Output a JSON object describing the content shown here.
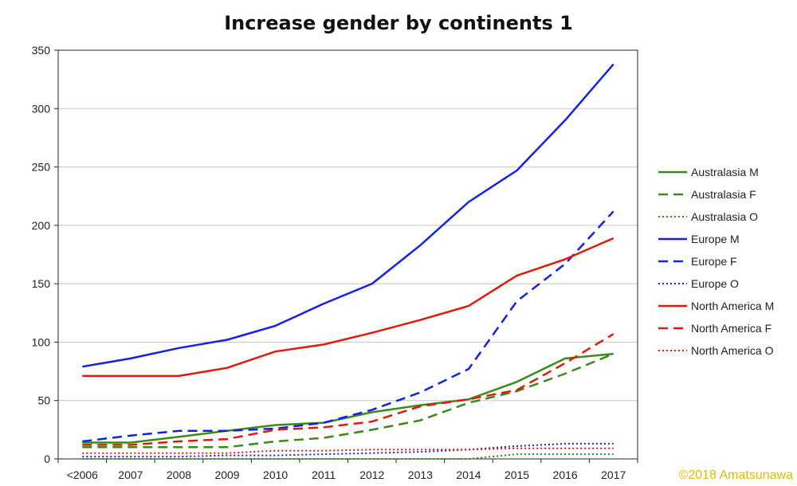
{
  "chart_data": {
    "type": "line",
    "title": "Increase gender by continents 1",
    "xlabel": "",
    "ylabel": "",
    "categories": [
      "<2006",
      "2007",
      "2008",
      "2009",
      "2010",
      "2011",
      "2012",
      "2013",
      "2014",
      "2015",
      "2016",
      "2017"
    ],
    "ylim": [
      0,
      350
    ],
    "yticks": [
      0,
      50,
      100,
      150,
      200,
      250,
      300,
      350
    ],
    "grid": true,
    "legend_position": "right",
    "series": [
      {
        "name": "Australasia M",
        "color": "#3a8a1a",
        "dash": "solid",
        "values": [
          14,
          14,
          19,
          24,
          29,
          31,
          40,
          46,
          51,
          66,
          86,
          90
        ]
      },
      {
        "name": "Australasia F",
        "color": "#3a8a1a",
        "dash": "dashed",
        "values": [
          10,
          10,
          10,
          10,
          15,
          18,
          25,
          33,
          48,
          58,
          73,
          90
        ]
      },
      {
        "name": "Australasia O",
        "color": "#3a8a1a",
        "dash": "dotted",
        "values": [
          0,
          0,
          0,
          0,
          0,
          0,
          0,
          0,
          0,
          4,
          4,
          4
        ]
      },
      {
        "name": "Europe M",
        "color": "#1420e8",
        "dash": "solid",
        "values": [
          79,
          86,
          95,
          102,
          114,
          133,
          150,
          183,
          220,
          247,
          290,
          338
        ]
      },
      {
        "name": "Europe F",
        "color": "#1420e8",
        "dash": "dashed",
        "values": [
          15,
          20,
          24,
          24,
          26,
          31,
          42,
          57,
          77,
          135,
          167,
          212
        ]
      },
      {
        "name": "Europe O",
        "color": "#1420e8",
        "dash": "dotted",
        "values": [
          2,
          2,
          2,
          3,
          3,
          4,
          5,
          6,
          8,
          11,
          13,
          13
        ]
      },
      {
        "name": "North America M",
        "color": "#e01a0a",
        "dash": "solid",
        "values": [
          71,
          71,
          71,
          78,
          92,
          98,
          108,
          119,
          131,
          157,
          171,
          189
        ]
      },
      {
        "name": "North America F",
        "color": "#e01a0a",
        "dash": "dashed",
        "values": [
          12,
          12,
          15,
          17,
          25,
          27,
          32,
          45,
          51,
          59,
          82,
          107
        ]
      },
      {
        "name": "North America O",
        "color": "#e01a0a",
        "dash": "dotted",
        "values": [
          5,
          5,
          5,
          5,
          7,
          7,
          8,
          8,
          8,
          9,
          9,
          9
        ]
      }
    ]
  },
  "copyright": "©2018 Amatsunawa"
}
